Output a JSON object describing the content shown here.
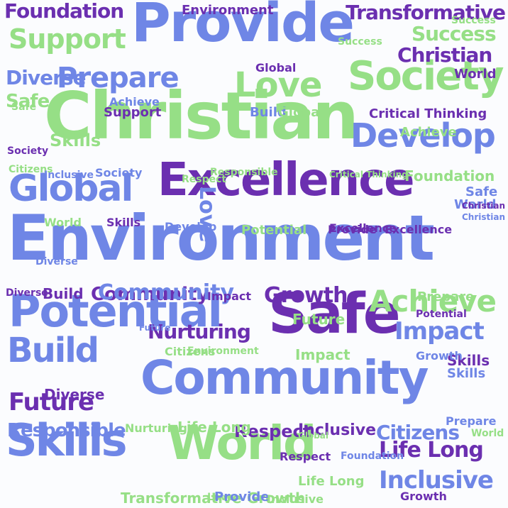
{
  "palette": {
    "purple": "#6b2fb0",
    "blue": "#6f86e6",
    "green": "#96df86",
    "background": "#fbfcfe"
  },
  "words": [
    {
      "text": "Provide",
      "c": "blue"
    },
    {
      "text": "Christian",
      "c": "green"
    },
    {
      "text": "Environment",
      "c": "blue"
    },
    {
      "text": "Excellence",
      "c": "purple"
    },
    {
      "text": "Community",
      "c": "blue"
    },
    {
      "text": "Potential",
      "c": "blue"
    },
    {
      "text": "Safe",
      "c": "purple"
    },
    {
      "text": "World",
      "c": "green"
    },
    {
      "text": "Skills",
      "c": "blue"
    },
    {
      "text": "Society",
      "c": "green"
    },
    {
      "text": "Love",
      "c": "green"
    },
    {
      "text": "Develop",
      "c": "blue"
    },
    {
      "text": "Prepare",
      "c": "blue"
    },
    {
      "text": "Global",
      "c": "blue"
    },
    {
      "text": "Build",
      "c": "blue"
    },
    {
      "text": "Achieve",
      "c": "green"
    },
    {
      "text": "Growth",
      "c": "purple"
    },
    {
      "text": "Impact",
      "c": "blue"
    },
    {
      "text": "Support",
      "c": "green"
    },
    {
      "text": "Foundation",
      "c": "purple"
    },
    {
      "text": "Transformative",
      "c": "purple"
    },
    {
      "text": "Success",
      "c": "green"
    },
    {
      "text": "Christian",
      "c": "purple"
    },
    {
      "text": "Diverse",
      "c": "blue"
    },
    {
      "text": "Safe",
      "c": "green"
    },
    {
      "text": "Future",
      "c": "purple"
    },
    {
      "text": "Responsible",
      "c": "blue"
    },
    {
      "text": "Nurturing",
      "c": "purple"
    },
    {
      "text": "Respect",
      "c": "purple"
    },
    {
      "text": "Inclusive",
      "c": "purple"
    },
    {
      "text": "Life Long",
      "c": "purple"
    },
    {
      "text": "Citizens",
      "c": "blue"
    },
    {
      "text": "Inclusive",
      "c": "blue"
    },
    {
      "text": "Critical Thinking",
      "c": "purple"
    },
    {
      "text": "Environment",
      "c": "purple"
    },
    {
      "text": "Excellence",
      "c": "purple"
    },
    {
      "text": "Global",
      "c": "purple"
    },
    {
      "text": "Love",
      "c": "blue"
    },
    {
      "text": "Success",
      "c": "green"
    },
    {
      "text": "Skills",
      "c": "green"
    },
    {
      "text": "Society",
      "c": "purple"
    },
    {
      "text": "Achieve",
      "c": "green"
    },
    {
      "text": "Foundation",
      "c": "green"
    },
    {
      "text": "Citizens",
      "c": "green"
    },
    {
      "text": "Inclusive",
      "c": "blue"
    },
    {
      "text": "Respect",
      "c": "green"
    },
    {
      "text": "Safe",
      "c": "blue"
    },
    {
      "text": "Society",
      "c": "blue"
    },
    {
      "text": "Responsible",
      "c": "green"
    },
    {
      "text": "Community",
      "c": "purple"
    },
    {
      "text": "Critical Thinking",
      "c": "green"
    },
    {
      "text": "World",
      "c": "green"
    },
    {
      "text": "Provide",
      "c": "purple"
    },
    {
      "text": "Excellence",
      "c": "purple"
    },
    {
      "text": "Potential",
      "c": "green"
    },
    {
      "text": "Develop",
      "c": "blue"
    },
    {
      "text": "Skills",
      "c": "purple"
    },
    {
      "text": "Respect",
      "c": "purple"
    },
    {
      "text": "Impact",
      "c": "green"
    },
    {
      "text": "Life Long",
      "c": "green"
    },
    {
      "text": "Future",
      "c": "green"
    },
    {
      "text": "World",
      "c": "blue"
    },
    {
      "text": "Build",
      "c": "purple"
    },
    {
      "text": "Diverse",
      "c": "purple"
    },
    {
      "text": "Community",
      "c": "blue"
    },
    {
      "text": "Impact",
      "c": "purple"
    },
    {
      "text": "Future",
      "c": "blue"
    },
    {
      "text": "Skills",
      "c": "purple"
    },
    {
      "text": "Citizens",
      "c": "green"
    },
    {
      "text": "Environment",
      "c": "green"
    },
    {
      "text": "Nurturing",
      "c": "green"
    },
    {
      "text": "Life Long",
      "c": "green"
    },
    {
      "text": "Love",
      "c": "green"
    },
    {
      "text": "Diverse",
      "c": "purple"
    },
    {
      "text": "Foundation",
      "c": "blue"
    },
    {
      "text": "Potential",
      "c": "purple"
    },
    {
      "text": "Growth",
      "c": "green"
    },
    {
      "text": "Prepare",
      "c": "green"
    },
    {
      "text": "Transformative",
      "c": "green"
    },
    {
      "text": "Provide",
      "c": "blue"
    },
    {
      "text": "Growth",
      "c": "purple"
    },
    {
      "text": "Prepare",
      "c": "blue"
    },
    {
      "text": "Inclusive",
      "c": "green"
    },
    {
      "text": "Global",
      "c": "green"
    },
    {
      "text": "Support",
      "c": "purple"
    },
    {
      "text": "Achieve",
      "c": "blue"
    },
    {
      "text": "Build",
      "c": "blue"
    },
    {
      "text": "Global",
      "c": "green"
    },
    {
      "text": "Diverse",
      "c": "blue"
    },
    {
      "text": "Christian",
      "c": "purple"
    },
    {
      "text": "World",
      "c": "purple"
    },
    {
      "text": "Safe",
      "c": "green"
    },
    {
      "text": "Skills",
      "c": "blue"
    },
    {
      "text": "Success",
      "c": "green"
    },
    {
      "text": "Growth",
      "c": "blue"
    },
    {
      "text": "Christian",
      "c": "blue"
    },
    {
      "text": "World",
      "c": "green"
    }
  ]
}
